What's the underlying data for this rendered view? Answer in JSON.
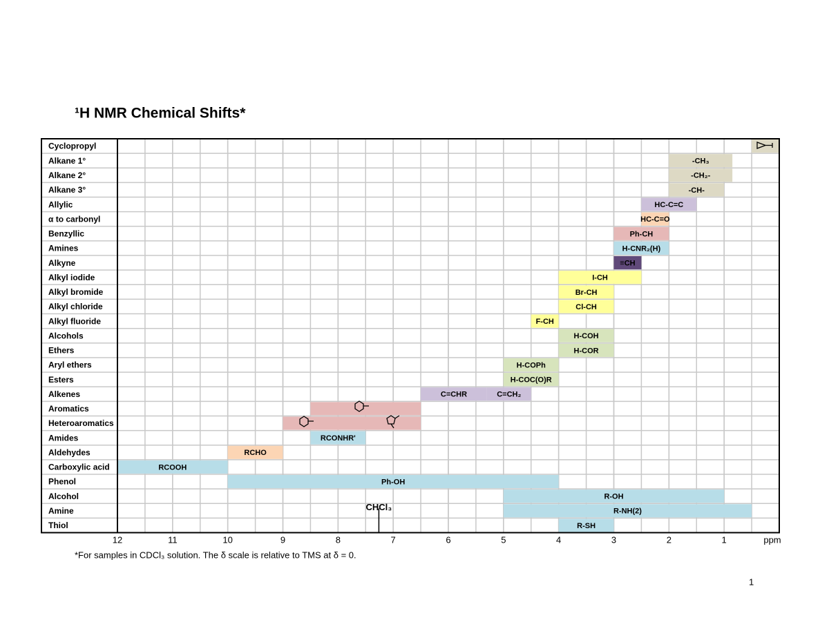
{
  "chart_data": {
    "type": "range",
    "title": "¹H NMR Chemical Shifts*",
    "xlim": [
      12,
      0
    ],
    "xticks": [
      12,
      11,
      10,
      9,
      8,
      7,
      6,
      5,
      4,
      3,
      2,
      1
    ],
    "xlabel": "ppm",
    "grid": true,
    "grid_step": 0.5,
    "rows": [
      {
        "name": "Cyclopropyl",
        "ranges": [
          {
            "values": [
              0,
              0.5
            ],
            "color": "#ddd9c4"
          }
        ]
      },
      {
        "name": "Alkane 1°",
        "ranges": [
          {
            "values": [
              0.85,
              2.0
            ],
            "label": "-CH₃",
            "color": "#ddd9c4"
          }
        ]
      },
      {
        "name": "Alkane 2°",
        "ranges": [
          {
            "values": [
              0.85,
              2.0
            ],
            "label": "-CH₂-",
            "color": "#ddd9c4"
          }
        ]
      },
      {
        "name": "Alkane 3°",
        "ranges": [
          {
            "values": [
              1.0,
              2.0
            ],
            "label": "-CH-",
            "color": "#ddd9c4"
          }
        ]
      },
      {
        "name": "Allylic",
        "ranges": [
          {
            "values": [
              1.5,
              2.5
            ],
            "label": "HC-C=C",
            "color": "#ccc0da"
          }
        ]
      },
      {
        "name": "α to carbonyl",
        "ranges": [
          {
            "values": [
              2.0,
              2.5
            ],
            "label": "HC-C=O",
            "color": "#fcd5b4"
          }
        ]
      },
      {
        "name": "Benzyllic",
        "ranges": [
          {
            "values": [
              2.0,
              3.0
            ],
            "label": "Ph-CH",
            "color": "#e6b8b7"
          }
        ]
      },
      {
        "name": "Amines",
        "ranges": [
          {
            "values": [
              2.0,
              3.0
            ],
            "label": "H-CNR₂(H)",
            "color": "#b7dde8"
          }
        ]
      },
      {
        "name": "Alkyne",
        "ranges": [
          {
            "values": [
              2.5,
              3.0
            ],
            "label": "≡CH",
            "color": "#60497a"
          }
        ]
      },
      {
        "name": "Alkyl iodide",
        "ranges": [
          {
            "values": [
              2.5,
              4.0
            ],
            "label": "I-CH",
            "color": "#ffff99"
          }
        ]
      },
      {
        "name": "Alkyl bromide",
        "ranges": [
          {
            "values": [
              3.0,
              4.0
            ],
            "label": "Br-CH",
            "color": "#ffff99"
          }
        ]
      },
      {
        "name": "Alkyl chloride",
        "ranges": [
          {
            "values": [
              3.0,
              4.0
            ],
            "label": "Cl-CH",
            "color": "#ffff99"
          }
        ]
      },
      {
        "name": "Alkyl fluoride",
        "ranges": [
          {
            "values": [
              4.0,
              4.5
            ],
            "label": "F-CH",
            "color": "#ffff99"
          }
        ]
      },
      {
        "name": "Alcohols",
        "ranges": [
          {
            "values": [
              3.0,
              4.0
            ],
            "label": "H-COH",
            "color": "#d7e4bc"
          }
        ]
      },
      {
        "name": "Ethers",
        "ranges": [
          {
            "values": [
              3.0,
              4.0
            ],
            "label": "H-COR",
            "color": "#d7e4bc"
          }
        ]
      },
      {
        "name": "Aryl ethers",
        "ranges": [
          {
            "values": [
              4.0,
              5.0
            ],
            "label": "H-COPh",
            "color": "#d7e4bc"
          }
        ]
      },
      {
        "name": "Esters",
        "ranges": [
          {
            "values": [
              4.0,
              5.0
            ],
            "label": "H-COC(O)R",
            "color": "#d7e4bc"
          }
        ]
      },
      {
        "name": "Alkenes",
        "ranges": [
          {
            "values": [
              5.3,
              6.5
            ],
            "label": "C=CHR",
            "color": "#ccc0da"
          },
          {
            "values": [
              4.5,
              5.3
            ],
            "label": "C=CH₂",
            "color": "#ccc0da"
          }
        ]
      },
      {
        "name": "Aromatics",
        "ranges": [
          {
            "values": [
              6.5,
              8.5
            ],
            "color": "#e6b8b7"
          }
        ]
      },
      {
        "name": "Heteroaromatics",
        "ranges": [
          {
            "values": [
              6.5,
              9.0
            ],
            "color": "#e6b8b7"
          }
        ]
      },
      {
        "name": "Amides",
        "ranges": [
          {
            "values": [
              7.5,
              8.5
            ],
            "label": "RCONHR'",
            "color": "#b7dde8"
          }
        ]
      },
      {
        "name": "Aldehydes",
        "ranges": [
          {
            "values": [
              9.0,
              10.0
            ],
            "label": "RCHO",
            "color": "#fcd5b4"
          }
        ]
      },
      {
        "name": "Carboxylic acid",
        "ranges": [
          {
            "values": [
              10.0,
              12.0
            ],
            "label": "RCOOH",
            "color": "#b7dde8"
          }
        ]
      },
      {
        "name": "Phenol",
        "ranges": [
          {
            "values": [
              4.0,
              10.0
            ],
            "label": "Ph-OH",
            "color": "#b7dde8"
          }
        ]
      },
      {
        "name": "Alcohol",
        "ranges": [
          {
            "values": [
              1.0,
              5.0
            ],
            "label": "R-OH",
            "color": "#b7dde8"
          }
        ]
      },
      {
        "name": "Amine",
        "ranges": [
          {
            "values": [
              0.5,
              5.0
            ],
            "label": "R-NH(2)",
            "color": "#b7dde8"
          }
        ]
      },
      {
        "name": "Thiol",
        "ranges": [
          {
            "values": [
              3.0,
              4.0
            ],
            "label": "R-SH",
            "color": "#b7dde8"
          }
        ]
      }
    ],
    "annotation": {
      "text": "CHCl₃",
      "value": 7.26
    },
    "footnote": "*For samples in CDCl₃ solution.  The δ scale is relative to TMS at δ = 0.",
    "page_number": "1"
  }
}
